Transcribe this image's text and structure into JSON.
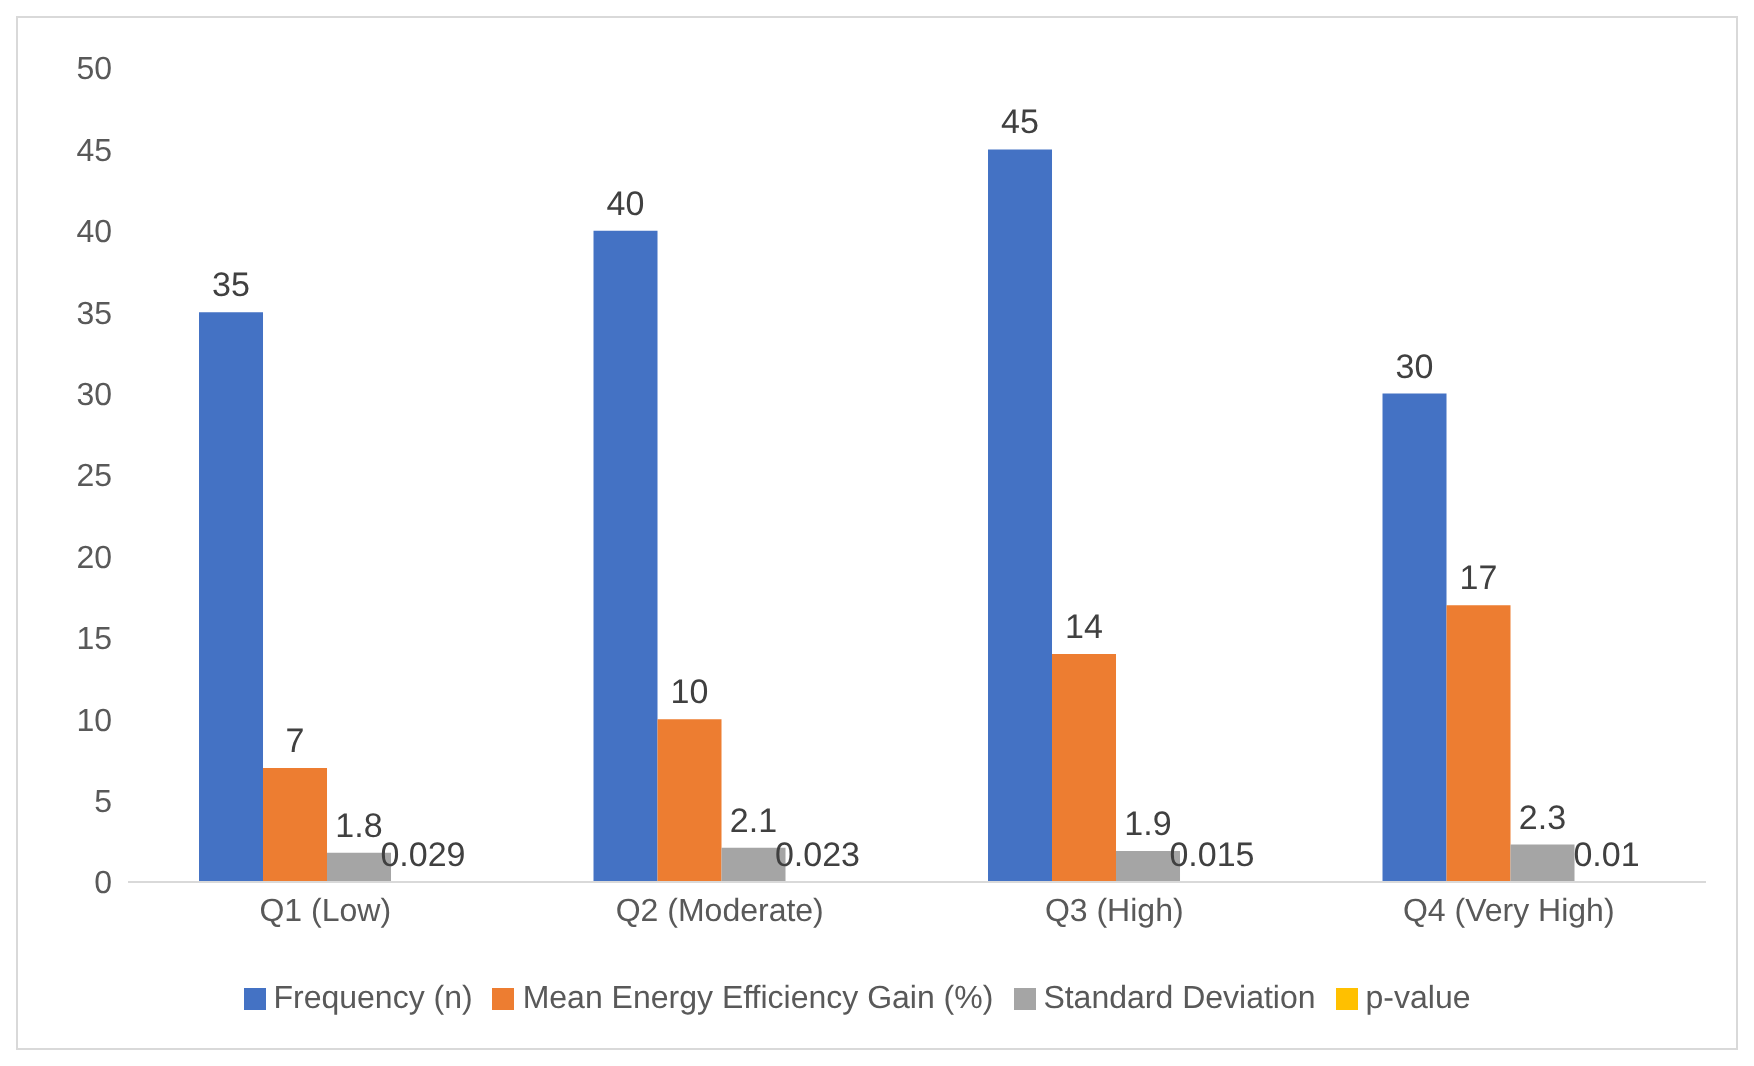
{
  "chart_data": {
    "type": "bar",
    "categories": [
      "Q1 (Low)",
      "Q2 (Moderate)",
      "Q3 (High)",
      "Q4 (Very High)"
    ],
    "series": [
      {
        "name": "Frequency (n)",
        "color": "#4472c4",
        "values": [
          35,
          40,
          45,
          30
        ]
      },
      {
        "name": "Mean Energy Efficiency Gain (%)",
        "color": "#ed7d31",
        "values": [
          7,
          10,
          14,
          17
        ]
      },
      {
        "name": "Standard Deviation",
        "color": "#a5a5a5",
        "values": [
          1.8,
          2.1,
          1.9,
          2.3
        ]
      },
      {
        "name": "p-value",
        "color": "#ffc000",
        "values": [
          0.029,
          0.023,
          0.015,
          0.01
        ]
      }
    ],
    "ylim": [
      0,
      50
    ],
    "yticks": [
      0,
      5,
      10,
      15,
      20,
      25,
      30,
      35,
      40,
      45,
      50
    ],
    "grid": false,
    "legend": "bottom",
    "data_labels": true
  }
}
